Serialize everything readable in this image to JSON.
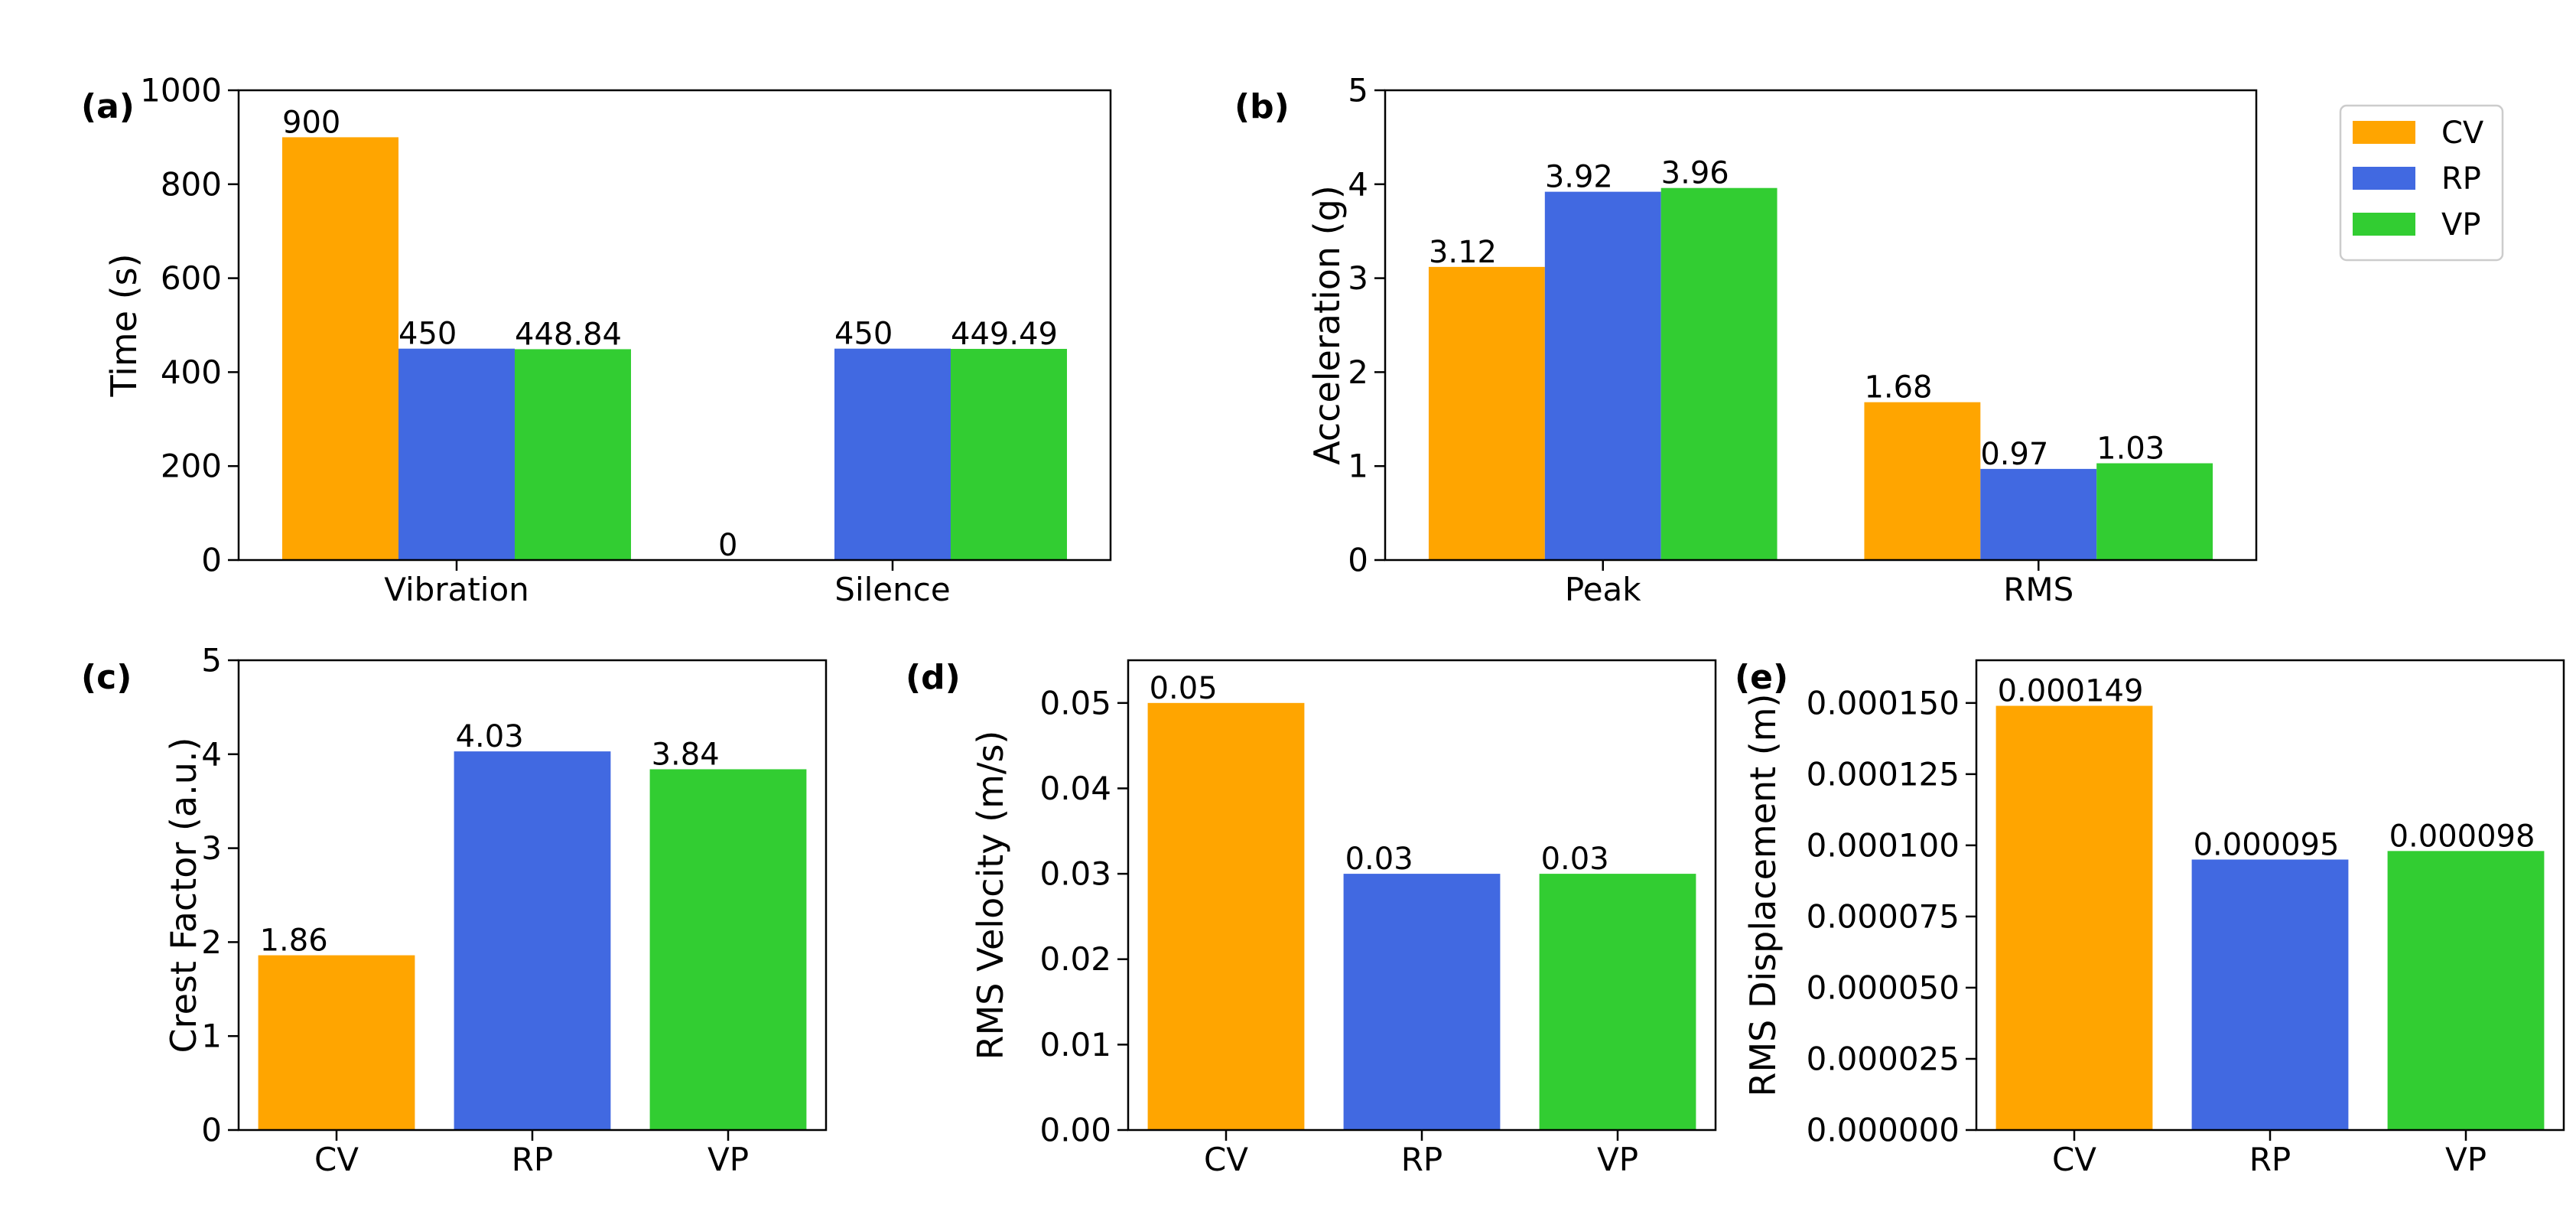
{
  "colors": {
    "CV": "#FFA500",
    "RP": "#4169E1",
    "VP": "#32CD32"
  },
  "legend": {
    "entries": [
      "CV",
      "RP",
      "VP"
    ]
  },
  "chart_data": [
    {
      "panel": "(a)",
      "type": "bar",
      "categories": [
        "Vibration",
        "Silence"
      ],
      "series": [
        {
          "name": "CV",
          "values": [
            900,
            0
          ],
          "labels": [
            "900",
            "0"
          ]
        },
        {
          "name": "RP",
          "values": [
            450,
            450
          ],
          "labels": [
            "450",
            "450"
          ]
        },
        {
          "name": "VP",
          "values": [
            448.84,
            449.49
          ],
          "labels": [
            "448.84",
            "449.49"
          ]
        }
      ],
      "ylabel": "Time (s)",
      "xlabel": "",
      "ylim": [
        0,
        1000
      ],
      "yticks": [
        "0",
        "200",
        "400",
        "600",
        "800",
        "1000"
      ]
    },
    {
      "panel": "(b)",
      "type": "bar",
      "categories": [
        "Peak",
        "RMS"
      ],
      "series": [
        {
          "name": "CV",
          "values": [
            3.12,
            1.68
          ],
          "labels": [
            "3.12",
            "1.68"
          ]
        },
        {
          "name": "RP",
          "values": [
            3.92,
            0.97
          ],
          "labels": [
            "3.92",
            "0.97"
          ]
        },
        {
          "name": "VP",
          "values": [
            3.96,
            1.03
          ],
          "labels": [
            "3.96",
            "1.03"
          ]
        }
      ],
      "ylabel": "Acceleration (g)",
      "xlabel": "",
      "ylim": [
        0,
        5
      ],
      "yticks": [
        "0",
        "1",
        "2",
        "3",
        "4",
        "5"
      ]
    },
    {
      "panel": "(c)",
      "type": "bar",
      "categories": [
        "CV",
        "RP",
        "VP"
      ],
      "values": [
        1.86,
        4.03,
        3.84
      ],
      "labels": [
        "1.86",
        "4.03",
        "3.84"
      ],
      "ylabel": "Crest Factor (a.u.)",
      "xlabel": "",
      "ylim": [
        0,
        5
      ],
      "yticks": [
        "0",
        "1",
        "2",
        "3",
        "4",
        "5"
      ]
    },
    {
      "panel": "(d)",
      "type": "bar",
      "categories": [
        "CV",
        "RP",
        "VP"
      ],
      "values": [
        0.05,
        0.03,
        0.03
      ],
      "labels": [
        "0.05",
        "0.03",
        "0.03"
      ],
      "ylabel": "RMS Velocity (m/s)",
      "xlabel": "",
      "ylim": [
        0,
        0.055
      ],
      "yticks": [
        "0.00",
        "0.01",
        "0.02",
        "0.03",
        "0.04",
        "0.05"
      ],
      "ytick_values": [
        0,
        0.01,
        0.02,
        0.03,
        0.04,
        0.05
      ]
    },
    {
      "panel": "(e)",
      "type": "bar",
      "categories": [
        "CV",
        "RP",
        "VP"
      ],
      "values": [
        0.000149,
        9.5e-05,
        9.8e-05
      ],
      "labels": [
        "0.000149",
        "0.000095",
        "0.000098"
      ],
      "ylabel": "RMS Displacement (m)",
      "xlabel": "",
      "ylim": [
        0,
        0.000165
      ],
      "yticks": [
        "0.000000",
        "0.000025",
        "0.000050",
        "0.000075",
        "0.000100",
        "0.000125",
        "0.000150"
      ],
      "ytick_values": [
        0,
        2.5e-05,
        5e-05,
        7.5e-05,
        0.0001,
        0.000125,
        0.00015
      ]
    }
  ]
}
